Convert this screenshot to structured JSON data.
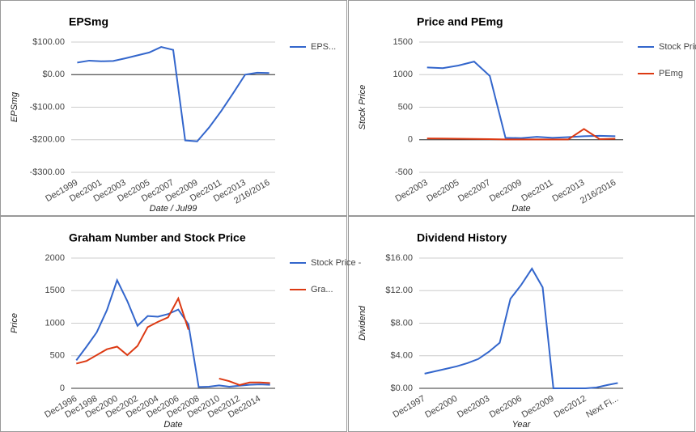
{
  "chart_data": [
    {
      "type": "line",
      "title": "EPSmg",
      "x_label": "Date / Jul99",
      "y_label": "EPSmg",
      "categories": [
        "Dec1999",
        null,
        "Dec2001",
        null,
        "Dec2003",
        null,
        "Dec2005",
        null,
        "Dec2007",
        null,
        "Dec2009",
        null,
        "Dec2011",
        null,
        "Dec2013",
        null,
        "2/16/2016"
      ],
      "series": [
        {
          "name": "EPS...",
          "color": "#3366cc",
          "values": [
            37,
            43,
            41,
            42,
            50,
            59,
            68,
            85,
            76,
            -202,
            -205,
            -162,
            -112,
            -57,
            0,
            6,
            5
          ]
        }
      ],
      "ylim": [
        -300,
        100
      ],
      "yticks": [
        {
          "value": -300,
          "label": "-$300.00"
        },
        {
          "value": -200,
          "label": "-$200.00"
        },
        {
          "value": -100,
          "label": "-$100.00"
        },
        {
          "value": 0,
          "label": "$0.00"
        },
        {
          "value": 100,
          "label": "$100.00"
        }
      ],
      "grid": true,
      "legend": "right"
    },
    {
      "type": "line",
      "title": "Price and PEmg",
      "x_label": "Date",
      "y_label": "Stock Price",
      "categories": [
        "Dec2003",
        null,
        "Dec2005",
        null,
        "Dec2007",
        null,
        "Dec2009",
        null,
        "Dec2011",
        null,
        "Dec2013",
        null,
        "2/16/2016"
      ],
      "series": [
        {
          "name": "Stock Price",
          "color": "#3366cc",
          "values": [
            1110,
            1100,
            1140,
            1200,
            980,
            30,
            25,
            45,
            30,
            40,
            55,
            60,
            55
          ]
        },
        {
          "name": "PEmg",
          "color": "#dc3912",
          "values": [
            20,
            18,
            15,
            12,
            10,
            5,
            5,
            5,
            5,
            5,
            165,
            10,
            15
          ]
        }
      ],
      "ylim": [
        -500,
        1500
      ],
      "yticks": [
        -500,
        0,
        500,
        1000,
        1500
      ],
      "grid": true,
      "legend": "right"
    },
    {
      "type": "line",
      "title": "Graham Number and Stock Price",
      "x_label": "Date",
      "y_label": "Price",
      "categories": [
        "Dec1996",
        null,
        "Dec1998",
        null,
        "Dec2000",
        null,
        "Dec2002",
        null,
        "Dec2004",
        null,
        "Dec2006",
        null,
        "Dec2008",
        null,
        "Dec2010",
        null,
        "Dec2012",
        null,
        "Dec2014",
        null
      ],
      "series": [
        {
          "name": "Stock Price -",
          "color": "#3366cc",
          "values": [
            430,
            640,
            860,
            1200,
            1660,
            1340,
            960,
            1110,
            1100,
            1140,
            1210,
            980,
            20,
            25,
            45,
            25,
            40,
            55,
            60,
            55
          ]
        },
        {
          "name": "Gra...",
          "color": "#dc3912",
          "values": [
            380,
            420,
            510,
            600,
            640,
            510,
            650,
            940,
            1020,
            1090,
            1380,
            900,
            null,
            null,
            150,
            110,
            50,
            90,
            90,
            80
          ]
        }
      ],
      "ylim": [
        0,
        2000
      ],
      "yticks": [
        0,
        500,
        1000,
        1500,
        2000
      ],
      "grid": true,
      "legend": "right"
    },
    {
      "type": "line",
      "title": "Dividend History",
      "x_label": "Year",
      "y_label": "Dividend",
      "categories": [
        "Dec1997",
        null,
        null,
        "Dec2000",
        null,
        null,
        "Dec2003",
        null,
        null,
        "Dec2006",
        null,
        null,
        "Dec2009",
        null,
        null,
        "Dec2012",
        null,
        null,
        "Next Fi..."
      ],
      "series": [
        {
          "color": "#3366cc",
          "values": [
            1.8,
            2.1,
            2.4,
            2.7,
            3.1,
            3.6,
            4.5,
            5.6,
            11,
            12.7,
            14.7,
            12.4,
            0,
            0,
            0,
            0,
            0.1,
            0.4,
            0.65
          ]
        }
      ],
      "ylim": [
        0,
        16
      ],
      "yticks": [
        {
          "value": 0,
          "label": "$0.00"
        },
        {
          "value": 4,
          "label": "$4.00"
        },
        {
          "value": 8,
          "label": "$8.00"
        },
        {
          "value": 12,
          "label": "$12.00"
        },
        {
          "value": 16,
          "label": "$16.00"
        }
      ],
      "grid": true
    }
  ]
}
